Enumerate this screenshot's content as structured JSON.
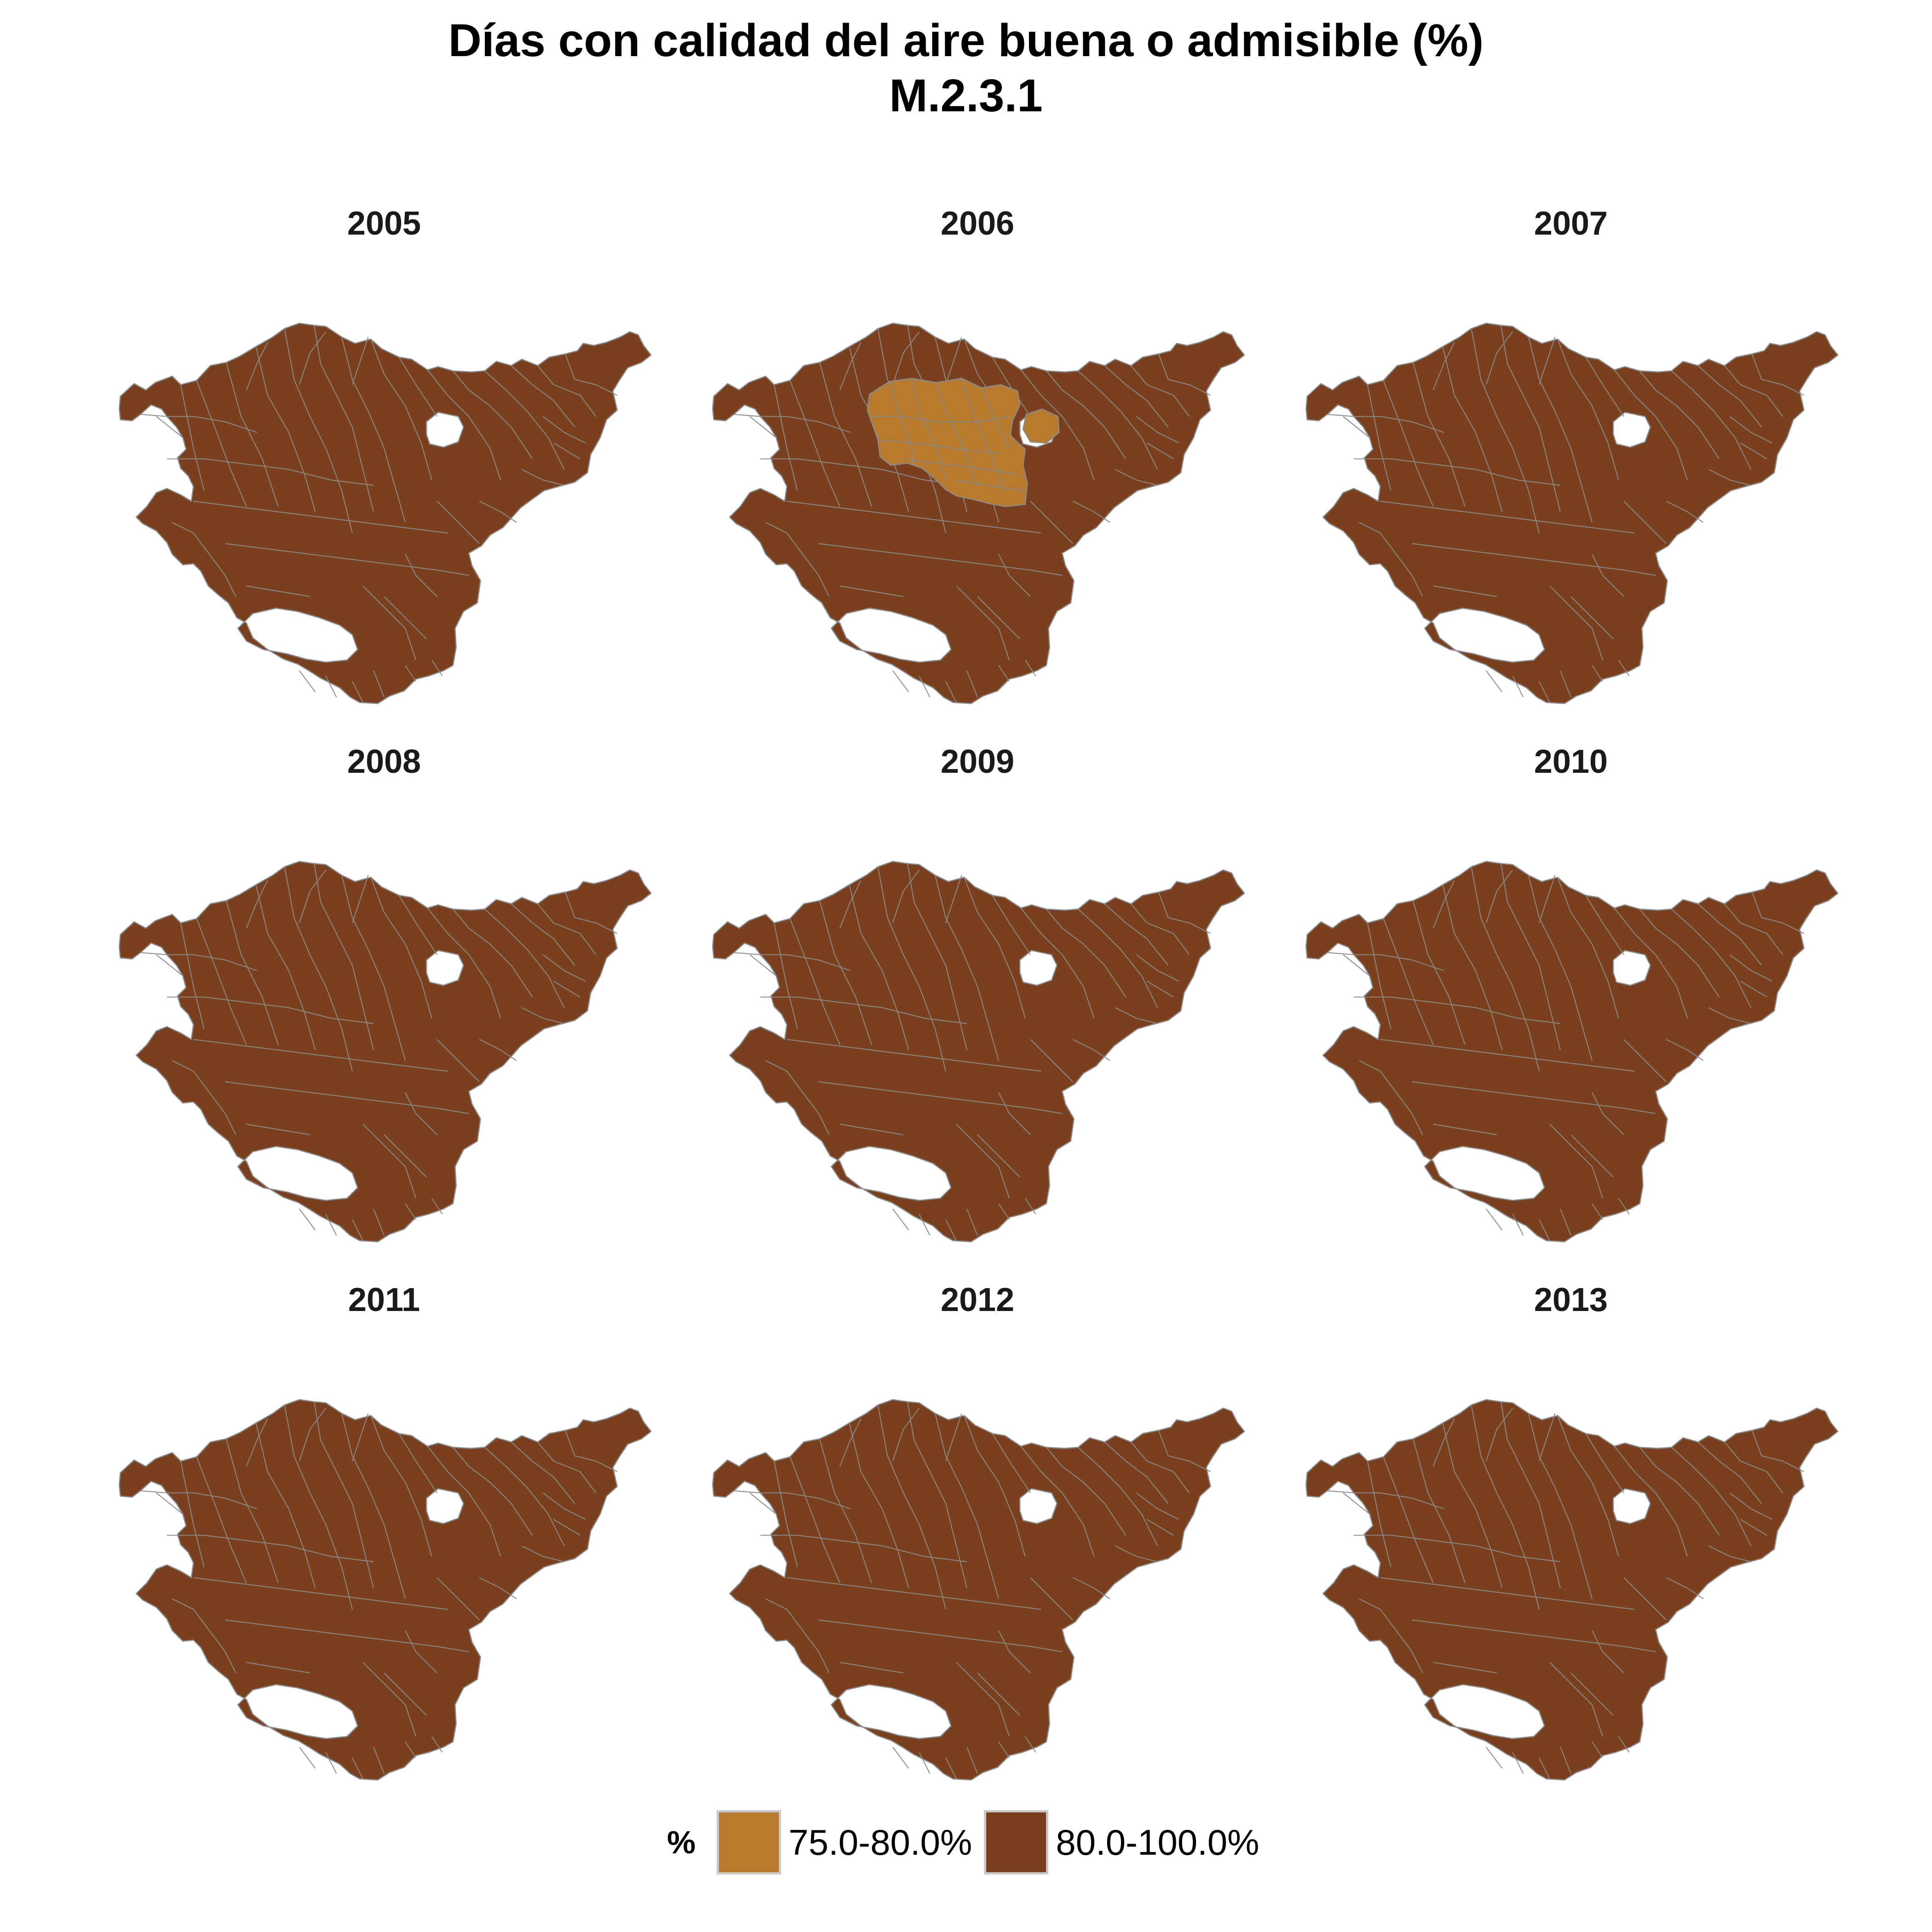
{
  "title": "Días con calidad del aire buena o admisible (%)",
  "subtitle": "M.2.3.1",
  "colors": {
    "low": "#b87a2c",
    "high": "#7a401d",
    "border": "#8a8a8a"
  },
  "legend": {
    "title": "%",
    "items": [
      {
        "label": "75.0-80.0%",
        "color": "#b87a2c"
      },
      {
        "label": "80.0-100.0%",
        "color": "#7a401d"
      }
    ]
  },
  "panels": [
    {
      "year": "2005",
      "highlight": false
    },
    {
      "year": "2006",
      "highlight": true
    },
    {
      "year": "2007",
      "highlight": false
    },
    {
      "year": "2008",
      "highlight": false
    },
    {
      "year": "2009",
      "highlight": false
    },
    {
      "year": "2010",
      "highlight": false
    },
    {
      "year": "2011",
      "highlight": false
    },
    {
      "year": "2012",
      "highlight": false
    },
    {
      "year": "2013",
      "highlight": false
    }
  ]
}
